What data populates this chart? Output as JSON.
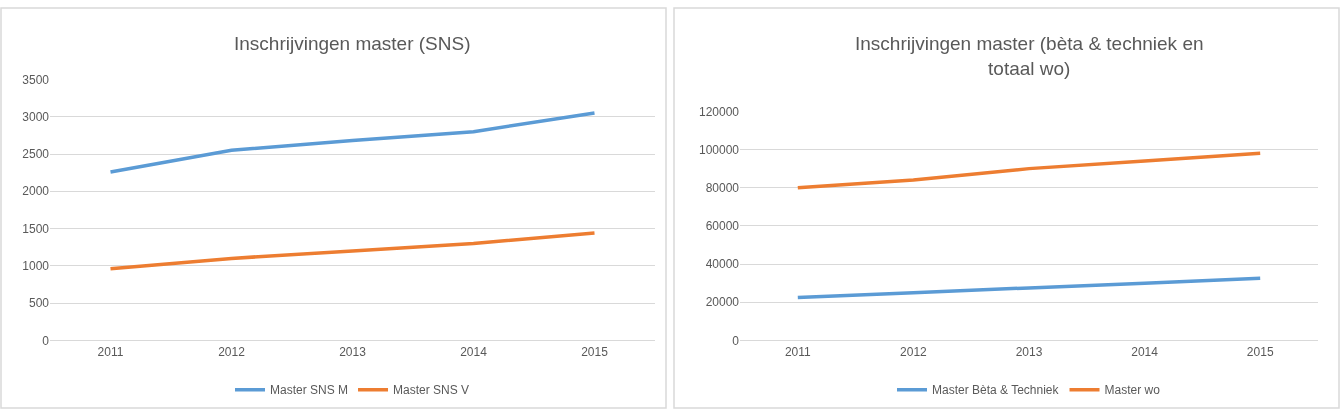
{
  "chart_data": [
    {
      "type": "line",
      "title": "Inschrijvingen master (SNS)",
      "categories": [
        "2011",
        "2012",
        "2013",
        "2014",
        "2015"
      ],
      "series": [
        {
          "name": "Master SNS M",
          "color": "#5b9bd5",
          "values": [
            2260,
            2550,
            2680,
            2800,
            3050
          ]
        },
        {
          "name": "Master SNS V",
          "color": "#ed7d31",
          "values": [
            960,
            1100,
            1200,
            1300,
            1440
          ]
        }
      ],
      "ylim": [
        0,
        3500
      ],
      "yticks": [
        0,
        500,
        1000,
        1500,
        2000,
        2500,
        3000,
        3500
      ],
      "grid": "y",
      "legend": "bottom",
      "marker": "none",
      "line_style": "solid"
    },
    {
      "type": "line",
      "title": "Inschrijvingen master (bèta & techniek en totaal wo)",
      "categories": [
        "2011",
        "2012",
        "2013",
        "2014",
        "2015"
      ],
      "series": [
        {
          "name": "Master Bèta & Techniek",
          "color": "#5b9bd5",
          "values": [
            22500,
            25000,
            27500,
            30000,
            32500
          ]
        },
        {
          "name": "Master wo",
          "color": "#ed7d31",
          "values": [
            80000,
            84000,
            90000,
            94000,
            98000
          ]
        }
      ],
      "ylim": [
        0,
        120000
      ],
      "yticks": [
        0,
        20000,
        40000,
        60000,
        80000,
        100000,
        120000
      ],
      "grid": "y",
      "legend": "bottom",
      "marker": "none",
      "line_style": "solid"
    }
  ]
}
